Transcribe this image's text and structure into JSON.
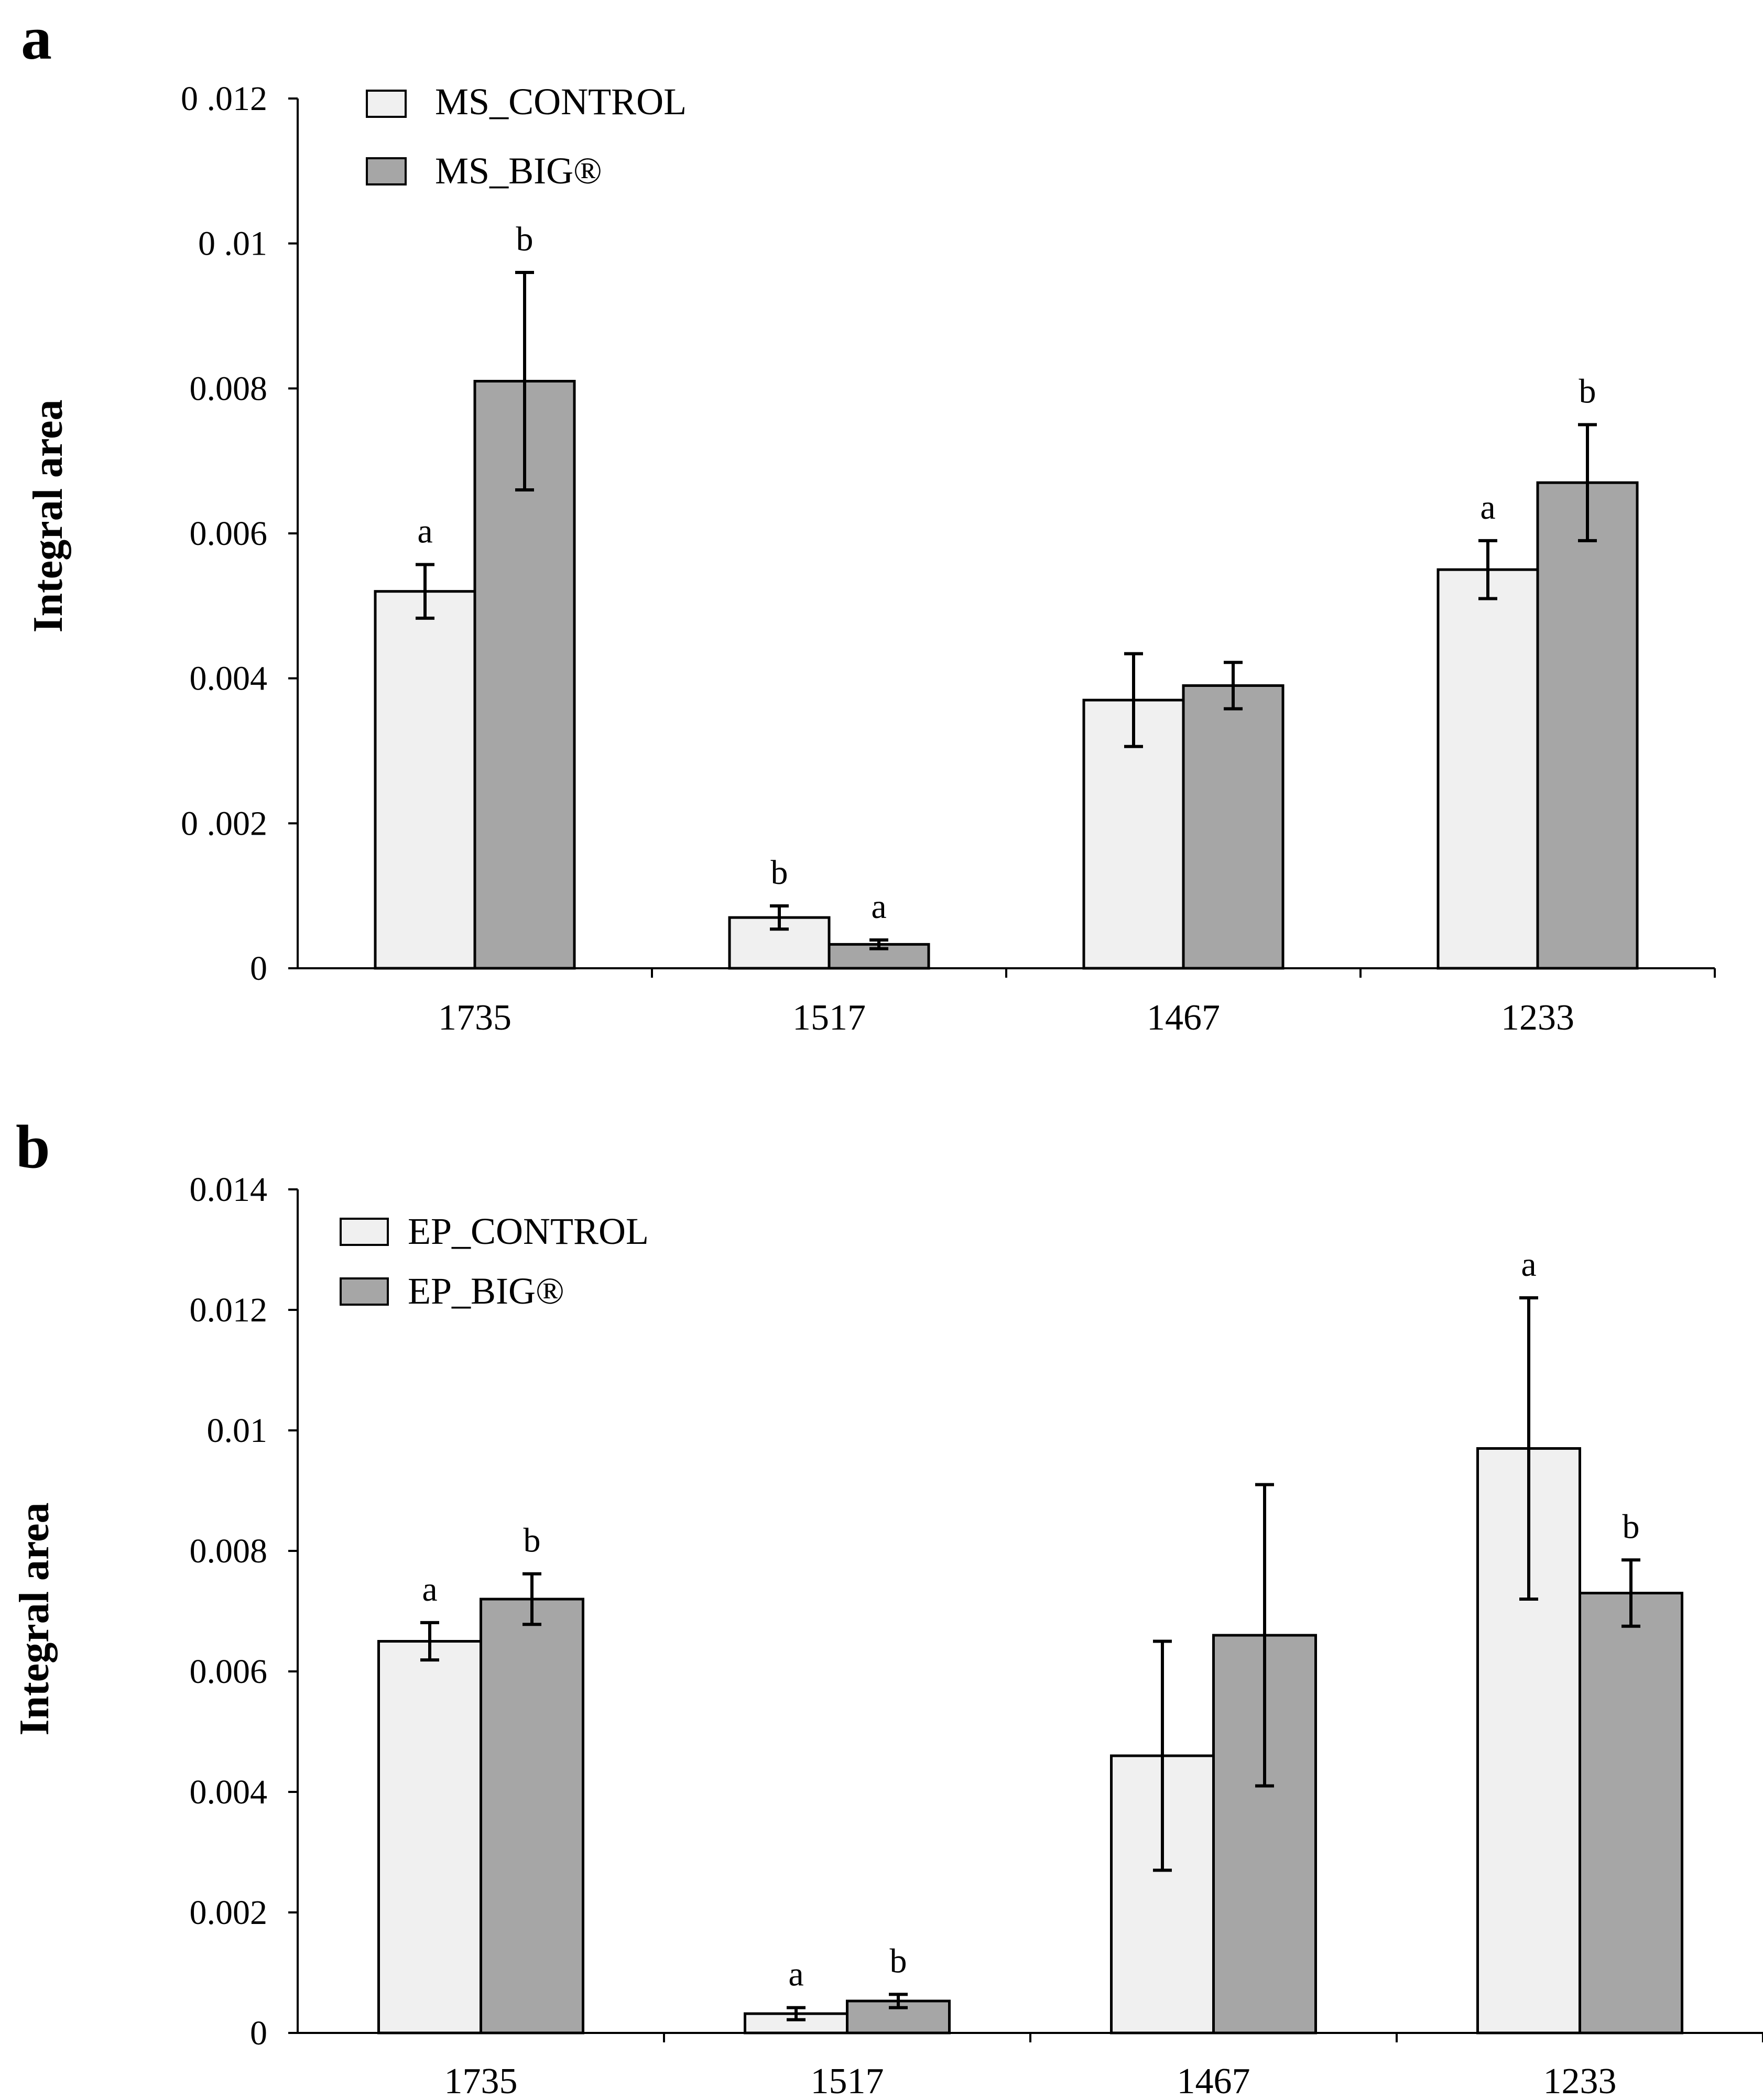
{
  "chart_data": [
    {
      "panel": "a",
      "type": "bar",
      "ylabel": "Integral area",
      "ylim": [
        0,
        0.012
      ],
      "ytick_labels": [
        "0",
        "0 .002",
        "0.004",
        "0.006",
        "0.008",
        "0 .01",
        "0 .012"
      ],
      "categories": [
        "1735",
        "1517",
        "1467",
        "1233"
      ],
      "colors": [
        "#f0f0f0",
        "#a6a6a6"
      ],
      "series": [
        {
          "name": "MS_CONTROL",
          "values": [
            0.0052,
            0.0007,
            0.0037,
            0.0055
          ],
          "errors": [
            0.00037,
            0.00016,
            0.00064,
            0.0004
          ],
          "sig": [
            "a",
            "b",
            "",
            "a"
          ]
        },
        {
          "name": "MS_BIG®",
          "values": [
            0.0081,
            0.00033,
            0.0039,
            0.0067
          ],
          "errors": [
            0.0015,
            6e-05,
            0.00032,
            0.0008
          ],
          "sig": [
            "b",
            "a",
            "",
            "b"
          ]
        }
      ]
    },
    {
      "panel": "b",
      "type": "bar",
      "ylabel": "Integral area",
      "ylim": [
        0,
        0.014
      ],
      "ytick_labels": [
        "0",
        "0.002",
        "0.004",
        "0.006",
        "0.008",
        "0.01",
        "0.012",
        "0.014"
      ],
      "categories": [
        "1735",
        "1517",
        "1467",
        "1233"
      ],
      "colors": [
        "#f0f0f0",
        "#a6a6a6"
      ],
      "series": [
        {
          "name": "EP_CONTROL",
          "values": [
            0.0065,
            0.00032,
            0.0046,
            0.0097
          ],
          "errors": [
            0.00031,
            0.0001,
            0.0019,
            0.0025
          ],
          "sig": [
            "a",
            "a",
            "",
            "a"
          ]
        },
        {
          "name": "EP_BIG®",
          "values": [
            0.0072,
            0.00053,
            0.0066,
            0.0073
          ],
          "errors": [
            0.00042,
            0.00011,
            0.0025,
            0.00055
          ],
          "sig": [
            "b",
            "b",
            "",
            "b"
          ]
        }
      ]
    }
  ]
}
